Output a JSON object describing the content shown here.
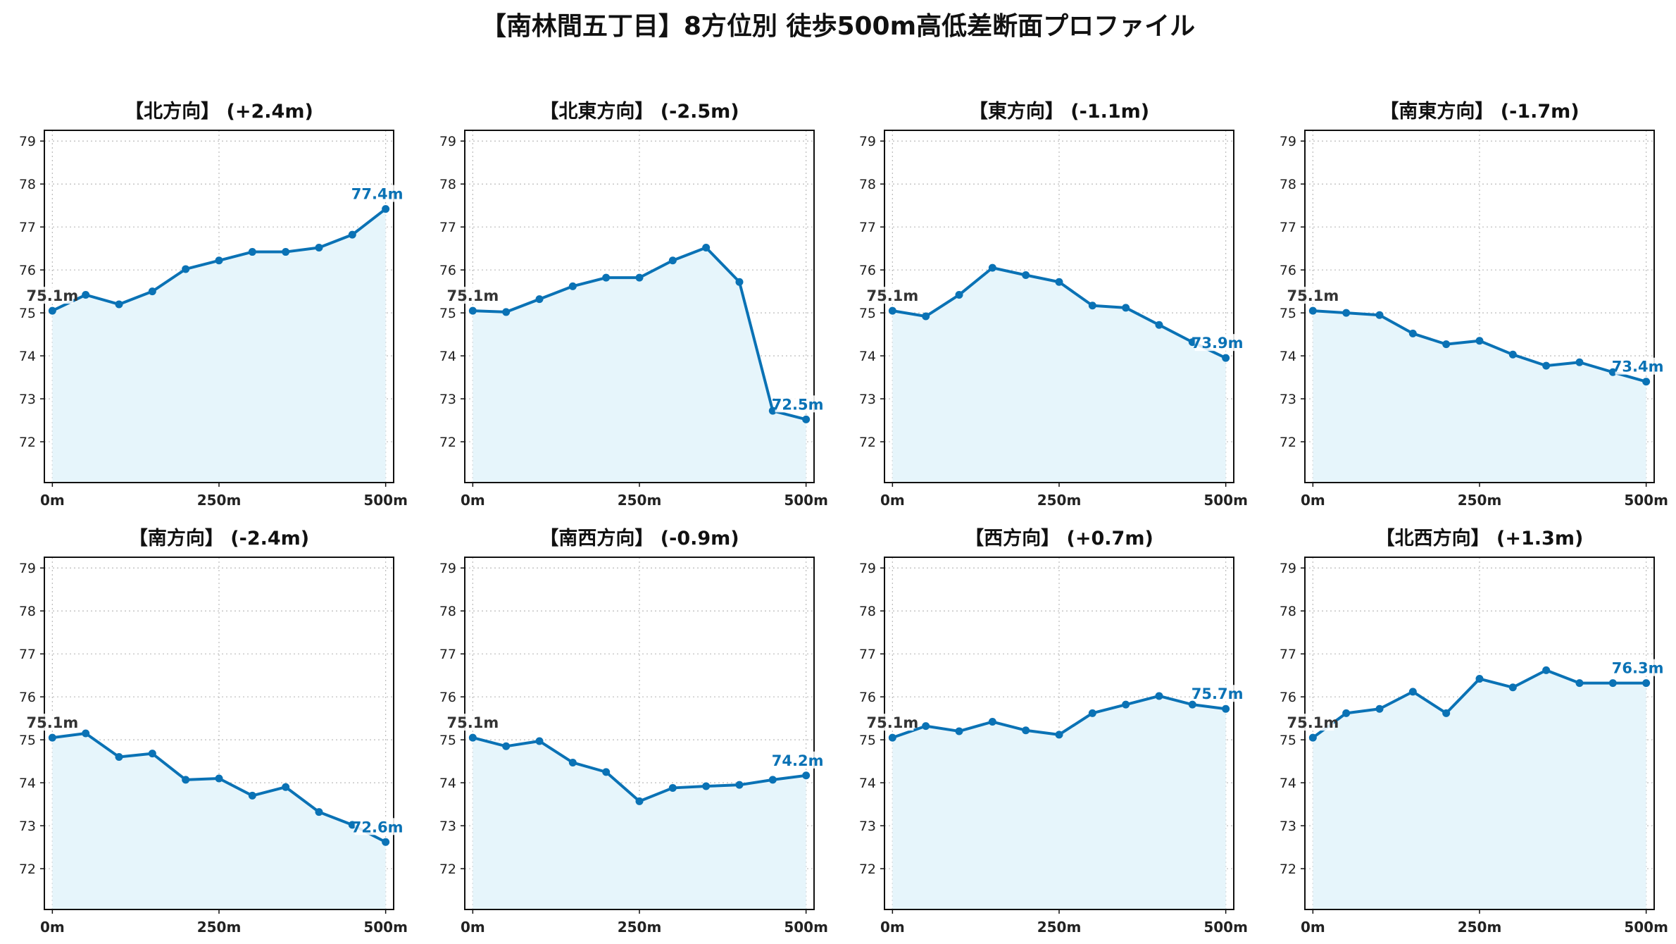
{
  "title": "【南林間五丁目】8方位別 徒歩500m高低差断面プロファイル",
  "colors": {
    "line": "#0a72b5",
    "fill": "#e6f5fb",
    "grid": "#bbbbbb",
    "start_label": "#333333",
    "end_label": "#0a72b5"
  },
  "chart_data": [
    {
      "type": "line",
      "title": "【北方向】 (+2.4m)",
      "x": [
        0,
        50,
        100,
        150,
        200,
        250,
        300,
        350,
        400,
        450,
        500
      ],
      "values": [
        75.05,
        75.42,
        75.2,
        75.5,
        76.02,
        76.22,
        76.42,
        76.42,
        76.52,
        76.82,
        77.42
      ],
      "start_label": "75.1m",
      "end_label": "77.4m",
      "xticks": [
        "0m",
        "250m",
        "500m"
      ],
      "yticks": [
        72,
        73,
        74,
        75,
        76,
        77,
        78,
        79
      ],
      "ylim": [
        71.05,
        79.25
      ],
      "xlim": [
        -12,
        512
      ],
      "grid": true
    },
    {
      "type": "line",
      "title": "【北東方向】 (-2.5m)",
      "x": [
        0,
        50,
        100,
        150,
        200,
        250,
        300,
        350,
        400,
        450,
        500
      ],
      "values": [
        75.05,
        75.02,
        75.32,
        75.62,
        75.82,
        75.82,
        76.22,
        76.52,
        75.72,
        72.72,
        72.52
      ],
      "start_label": "75.1m",
      "end_label": "72.5m",
      "xticks": [
        "0m",
        "250m",
        "500m"
      ],
      "yticks": [
        72,
        73,
        74,
        75,
        76,
        77,
        78,
        79
      ],
      "ylim": [
        71.05,
        79.25
      ],
      "xlim": [
        -12,
        512
      ],
      "grid": true
    },
    {
      "type": "line",
      "title": "【東方向】 (-1.1m)",
      "x": [
        0,
        50,
        100,
        150,
        200,
        250,
        300,
        350,
        400,
        450,
        500
      ],
      "values": [
        75.05,
        74.92,
        75.42,
        76.05,
        75.88,
        75.72,
        75.17,
        75.12,
        74.72,
        74.32,
        73.95
      ],
      "start_label": "75.1m",
      "end_label": "73.9m",
      "xticks": [
        "0m",
        "250m",
        "500m"
      ],
      "yticks": [
        72,
        73,
        74,
        75,
        76,
        77,
        78,
        79
      ],
      "ylim": [
        71.05,
        79.25
      ],
      "xlim": [
        -12,
        512
      ],
      "grid": true
    },
    {
      "type": "line",
      "title": "【南東方向】 (-1.7m)",
      "x": [
        0,
        50,
        100,
        150,
        200,
        250,
        300,
        350,
        400,
        450,
        500
      ],
      "values": [
        75.05,
        75.0,
        74.95,
        74.52,
        74.27,
        74.35,
        74.03,
        73.77,
        73.85,
        73.62,
        73.4
      ],
      "start_label": "75.1m",
      "end_label": "73.4m",
      "xticks": [
        "0m",
        "250m",
        "500m"
      ],
      "yticks": [
        72,
        73,
        74,
        75,
        76,
        77,
        78,
        79
      ],
      "ylim": [
        71.05,
        79.25
      ],
      "xlim": [
        -12,
        512
      ],
      "grid": true
    },
    {
      "type": "line",
      "title": "【南方向】 (-2.4m)",
      "x": [
        0,
        50,
        100,
        150,
        200,
        250,
        300,
        350,
        400,
        450,
        500
      ],
      "values": [
        75.05,
        75.15,
        74.6,
        74.68,
        74.07,
        74.1,
        73.7,
        73.9,
        73.32,
        73.02,
        72.62
      ],
      "start_label": "75.1m",
      "end_label": "72.6m",
      "xticks": [
        "0m",
        "250m",
        "500m"
      ],
      "yticks": [
        72,
        73,
        74,
        75,
        76,
        77,
        78,
        79
      ],
      "ylim": [
        71.05,
        79.25
      ],
      "xlim": [
        -12,
        512
      ],
      "grid": true
    },
    {
      "type": "line",
      "title": "【南西方向】 (-0.9m)",
      "x": [
        0,
        50,
        100,
        150,
        200,
        250,
        300,
        350,
        400,
        450,
        500
      ],
      "values": [
        75.05,
        74.85,
        74.97,
        74.47,
        74.25,
        73.57,
        73.88,
        73.92,
        73.95,
        74.07,
        74.17
      ],
      "start_label": "75.1m",
      "end_label": "74.2m",
      "xticks": [
        "0m",
        "250m",
        "500m"
      ],
      "yticks": [
        72,
        73,
        74,
        75,
        76,
        77,
        78,
        79
      ],
      "ylim": [
        71.05,
        79.25
      ],
      "xlim": [
        -12,
        512
      ],
      "grid": true
    },
    {
      "type": "line",
      "title": "【西方向】 (+0.7m)",
      "x": [
        0,
        50,
        100,
        150,
        200,
        250,
        300,
        350,
        400,
        450,
        500
      ],
      "values": [
        75.05,
        75.32,
        75.2,
        75.42,
        75.22,
        75.12,
        75.62,
        75.82,
        76.02,
        75.82,
        75.72
      ],
      "start_label": "75.1m",
      "end_label": "75.7m",
      "xticks": [
        "0m",
        "250m",
        "500m"
      ],
      "yticks": [
        72,
        73,
        74,
        75,
        76,
        77,
        78,
        79
      ],
      "ylim": [
        71.05,
        79.25
      ],
      "xlim": [
        -12,
        512
      ],
      "grid": true
    },
    {
      "type": "line",
      "title": "【北西方向】 (+1.3m)",
      "x": [
        0,
        50,
        100,
        150,
        200,
        250,
        300,
        350,
        400,
        450,
        500
      ],
      "values": [
        75.05,
        75.62,
        75.72,
        76.12,
        75.62,
        76.42,
        76.22,
        76.62,
        76.32,
        76.32,
        76.32
      ],
      "start_label": "75.1m",
      "end_label": "76.3m",
      "xticks": [
        "0m",
        "250m",
        "500m"
      ],
      "yticks": [
        72,
        73,
        74,
        75,
        76,
        77,
        78,
        79
      ],
      "ylim": [
        71.05,
        79.25
      ],
      "xlim": [
        -12,
        512
      ],
      "grid": true
    }
  ]
}
